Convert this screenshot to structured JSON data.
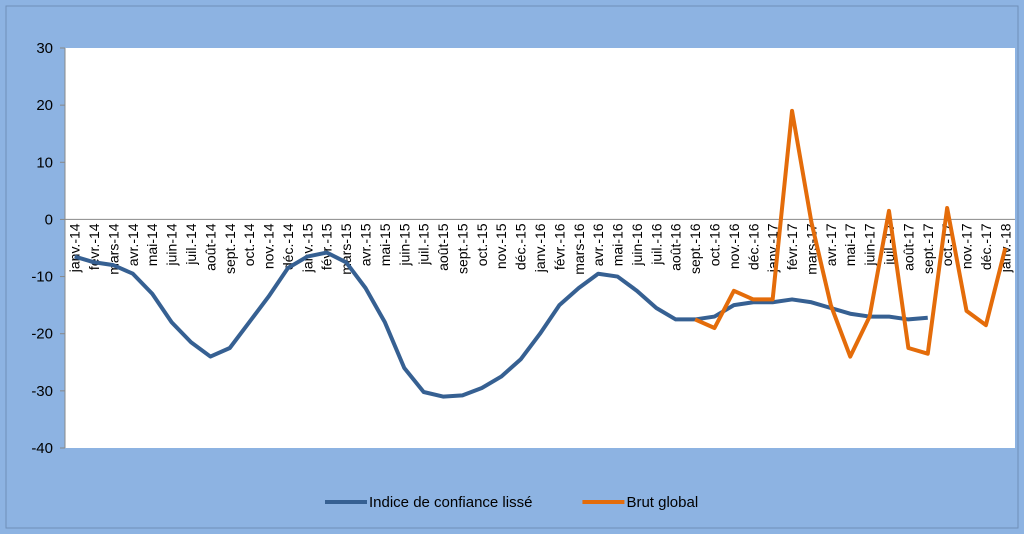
{
  "chart_data": {
    "type": "line",
    "categories": [
      "janv.-14",
      "févr.-14",
      "mars-14",
      "avr.-14",
      "mai-14",
      "juin-14",
      "juil.-14",
      "août-14",
      "sept.-14",
      "oct.-14",
      "nov.-14",
      "déc.-14",
      "janv.-15",
      "févr.-15",
      "mars-15",
      "avr.-15",
      "mai-15",
      "juin-15",
      "juil.-15",
      "août-15",
      "sept.-15",
      "oct.-15",
      "nov.-15",
      "déc.-15",
      "janv.-16",
      "févr.-16",
      "mars-16",
      "avr.-16",
      "mai-16",
      "juin-16",
      "juil.-16",
      "août-16",
      "sept.-16",
      "oct.-16",
      "nov.-16",
      "déc.-16",
      "janv.-17",
      "févr.-17",
      "mars-17",
      "avr.-17",
      "mai-17",
      "juin-17",
      "juil.-17",
      "août-17",
      "sept.-17",
      "oct.-17",
      "nov.-17",
      "déc.-17",
      "janv.-18"
    ],
    "series": [
      {
        "name": "Indice de confiance lissé",
        "color": "#366092",
        "values": [
          -6.5,
          -7.5,
          -8,
          -9.5,
          -13,
          -18,
          -21.5,
          -24,
          -22.5,
          -18,
          -13.5,
          -8.5,
          -6.5,
          -5.8,
          -7.5,
          -12,
          -18,
          -26,
          -30.2,
          -31,
          -30.8,
          -29.5,
          -27.5,
          -24.5,
          -20,
          -15,
          -12,
          -9.5,
          -10,
          -12.5,
          -15.5,
          -17.5,
          -17.5,
          -17,
          -15,
          -14.5,
          -14.5,
          -14,
          -14.5,
          -15.5,
          -16.5,
          -17,
          -17,
          -17.5,
          -17.2,
          null,
          null,
          null,
          null
        ]
      },
      {
        "name": "Brut global",
        "color": "#e46c0a",
        "values": [
          null,
          null,
          null,
          null,
          null,
          null,
          null,
          null,
          null,
          null,
          null,
          null,
          null,
          null,
          null,
          null,
          null,
          null,
          null,
          null,
          null,
          null,
          null,
          null,
          null,
          null,
          null,
          null,
          null,
          null,
          null,
          null,
          -17.5,
          -19,
          -12.5,
          -14,
          -14,
          19,
          -0.5,
          -15,
          -24,
          -17,
          1.5,
          -22.5,
          -23.5,
          2,
          -16,
          -18.5,
          -5
        ]
      }
    ],
    "ylim": [
      -40,
      30
    ],
    "yticks": [
      -40,
      -30,
      -20,
      -10,
      0,
      10,
      20,
      30
    ],
    "legend": "bottom"
  }
}
